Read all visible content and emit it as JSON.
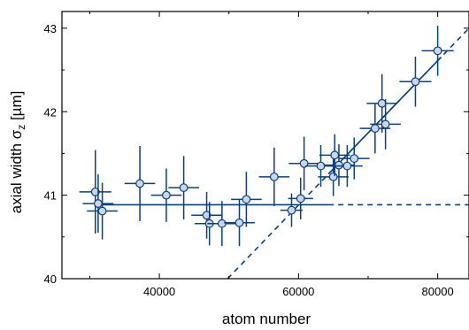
{
  "colors": {
    "series": "#0d3f7a",
    "marker_fill": "#c9d6ee",
    "axis": "#000000"
  },
  "chart_data": {
    "type": "scatter",
    "xlabel": "atom number",
    "ylabel": {
      "prefix": "axial width σ",
      "subscript": "z",
      "suffix": " [µm]"
    },
    "xlim": [
      26000,
      84500
    ],
    "ylim": [
      40,
      43.2
    ],
    "x_ticks": [
      40000,
      60000,
      80000
    ],
    "x_tick_labels": [
      "40000",
      "60000",
      "80000"
    ],
    "y_ticks": [
      40,
      41,
      42,
      43
    ],
    "y_tick_labels": [
      "40",
      "41",
      "42",
      "43"
    ],
    "grid": false,
    "legend": "none",
    "points": [
      {
        "x": 30800,
        "y": 41.04,
        "xerr": 2300,
        "yerr": 0.5
      },
      {
        "x": 31200,
        "y": 40.9,
        "xerr": 2200,
        "yerr": 0.35
      },
      {
        "x": 31800,
        "y": 40.81,
        "xerr": 2200,
        "yerr": 0.34
      },
      {
        "x": 37200,
        "y": 41.14,
        "xerr": 2200,
        "yerr": 0.45
      },
      {
        "x": 41000,
        "y": 41.0,
        "xerr": 2200,
        "yerr": 0.32
      },
      {
        "x": 43500,
        "y": 41.09,
        "xerr": 2200,
        "yerr": 0.38
      },
      {
        "x": 46800,
        "y": 40.76,
        "xerr": 2200,
        "yerr": 0.28
      },
      {
        "x": 47200,
        "y": 40.66,
        "xerr": 2100,
        "yerr": 0.26
      },
      {
        "x": 49000,
        "y": 40.66,
        "xerr": 2100,
        "yerr": 0.27
      },
      {
        "x": 51500,
        "y": 40.67,
        "xerr": 2200,
        "yerr": 0.28
      },
      {
        "x": 52500,
        "y": 40.95,
        "xerr": 2200,
        "yerr": 0.33
      },
      {
        "x": 56500,
        "y": 41.22,
        "xerr": 2200,
        "yerr": 0.35
      },
      {
        "x": 59000,
        "y": 40.82,
        "xerr": 1600,
        "yerr": 0.2
      },
      {
        "x": 60300,
        "y": 40.96,
        "xerr": 1800,
        "yerr": 0.25
      },
      {
        "x": 60800,
        "y": 41.38,
        "xerr": 2200,
        "yerr": 0.32
      },
      {
        "x": 63200,
        "y": 41.35,
        "xerr": 2200,
        "yerr": 0.25
      },
      {
        "x": 65000,
        "y": 41.22,
        "xerr": 2200,
        "yerr": 0.23
      },
      {
        "x": 65200,
        "y": 41.48,
        "xerr": 2200,
        "yerr": 0.25
      },
      {
        "x": 65800,
        "y": 41.36,
        "xerr": 2200,
        "yerr": 0.25
      },
      {
        "x": 67000,
        "y": 41.35,
        "xerr": 2200,
        "yerr": 0.25
      },
      {
        "x": 68000,
        "y": 41.44,
        "xerr": 2200,
        "yerr": 0.25
      },
      {
        "x": 71000,
        "y": 41.8,
        "xerr": 2200,
        "yerr": 0.3
      },
      {
        "x": 72000,
        "y": 42.1,
        "xerr": 2200,
        "yerr": 0.35
      },
      {
        "x": 72500,
        "y": 41.85,
        "xerr": 2200,
        "yerr": 0.3
      },
      {
        "x": 76800,
        "y": 42.36,
        "xerr": 2300,
        "yerr": 0.3
      },
      {
        "x": 80000,
        "y": 42.73,
        "xerr": 2300,
        "yerr": 0.3
      }
    ],
    "fits": {
      "plateau_y": 40.885,
      "plateau_solid_x": [
        31000,
        64300
      ],
      "plateau_dashed_x": [
        64300,
        84500
      ],
      "slope_solid_x": [
        64300,
        80500
      ],
      "slope_line": {
        "x0": 49800,
        "y0": 40.0,
        "x1": 84500,
        "y1": 43.0
      }
    }
  }
}
